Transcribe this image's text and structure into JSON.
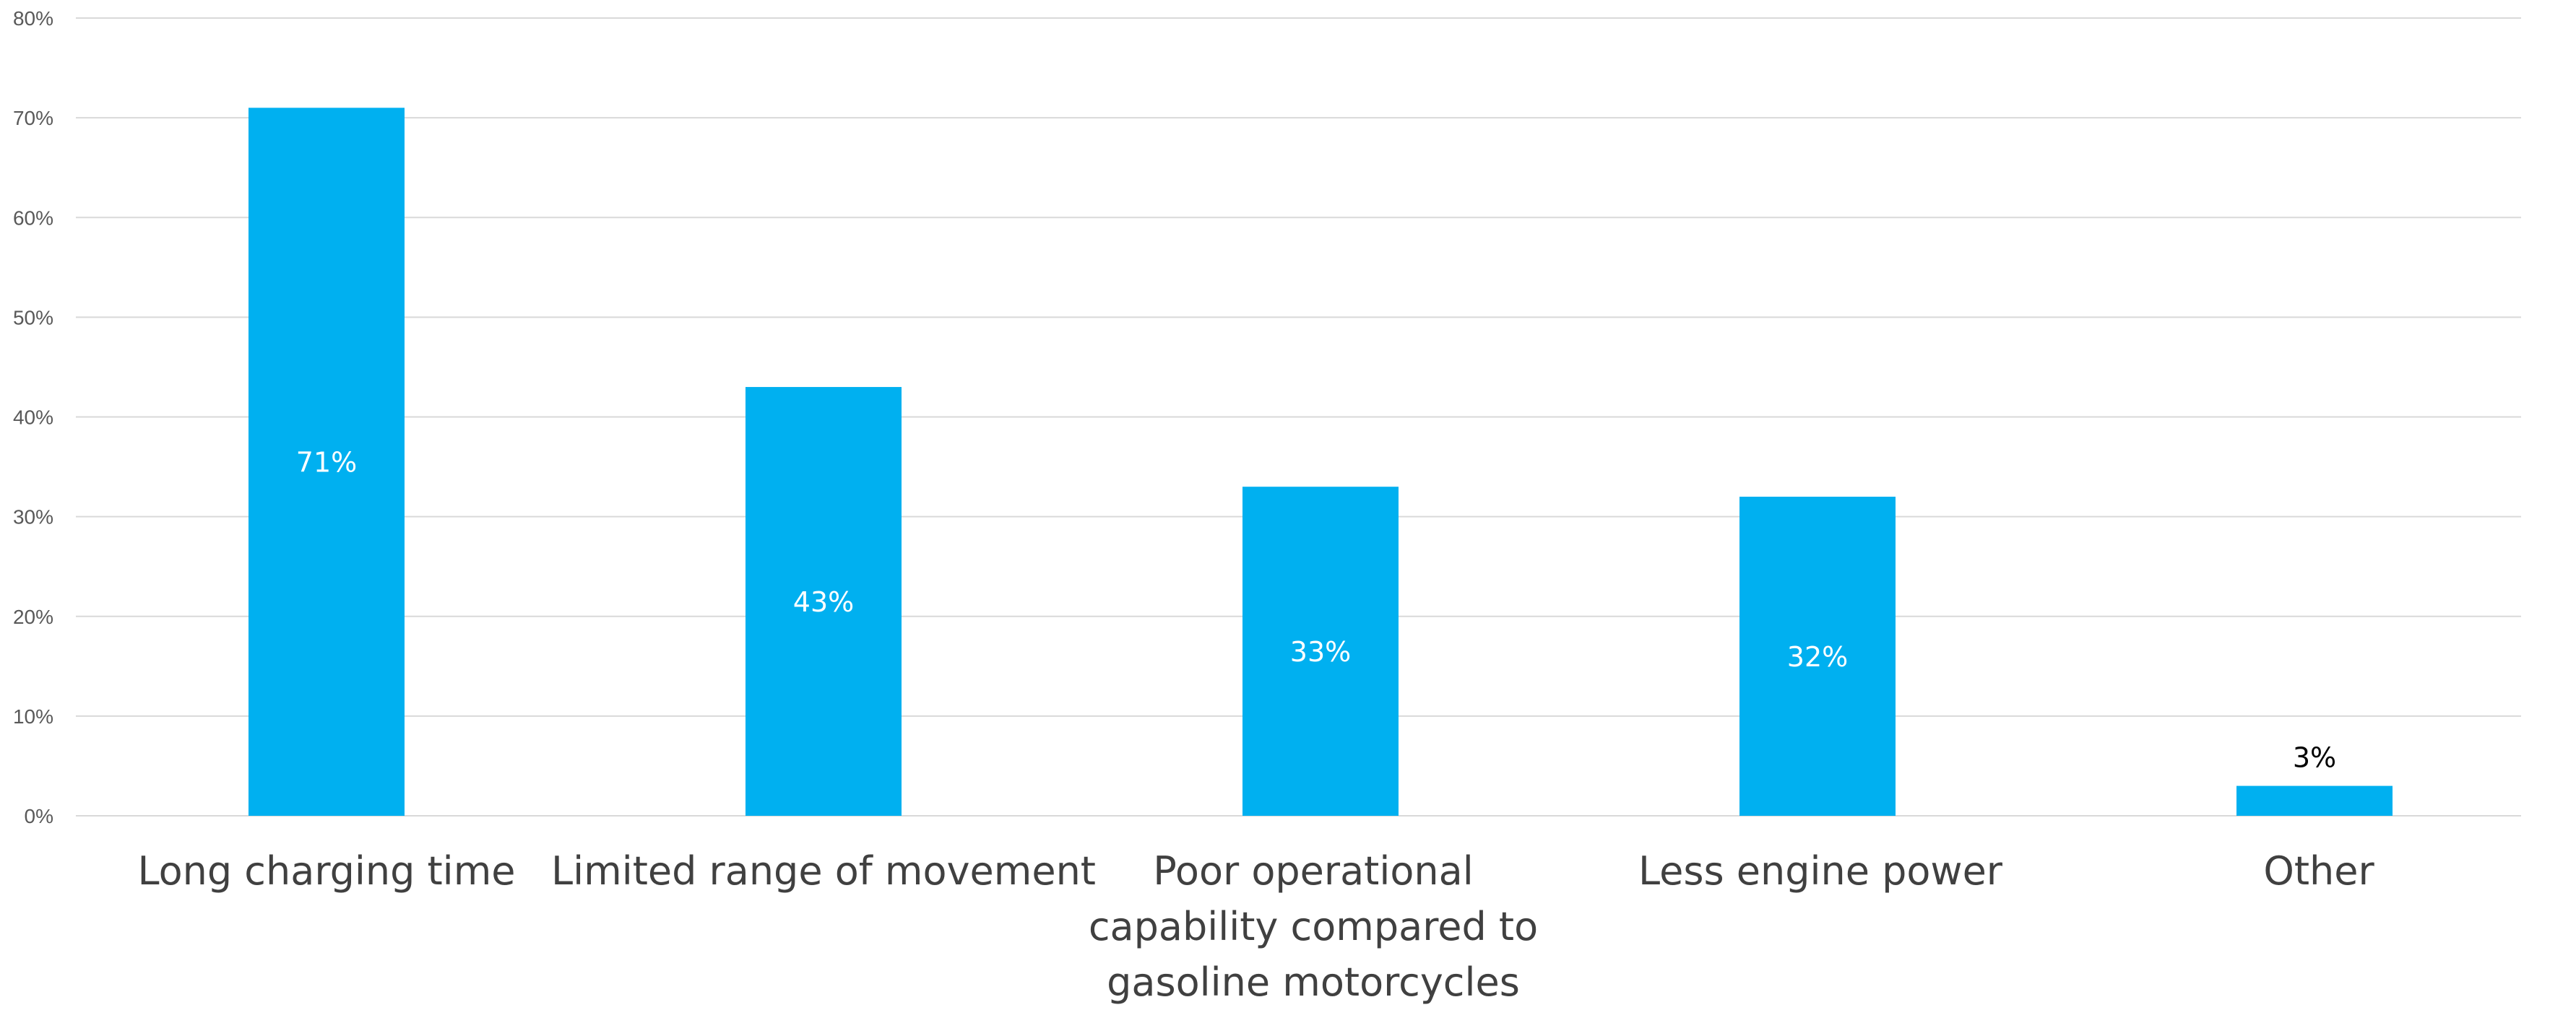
{
  "chart_data": {
    "type": "bar",
    "categories": [
      "Long charging time",
      "Limited range of movement",
      "Poor operational capability compared to gasoline motorcycles",
      "Less engine power",
      "Other"
    ],
    "values": [
      71,
      43,
      33,
      32,
      3
    ],
    "data_labels": [
      "71%",
      "43%",
      "33%",
      "32%",
      "3%"
    ],
    "ylim": [
      0,
      80
    ],
    "yticks": [
      0,
      10,
      20,
      30,
      40,
      50,
      60,
      70,
      80
    ],
    "ytick_labels": [
      "0%",
      "10%",
      "20%",
      "30%",
      "40%",
      "50%",
      "60%",
      "70%",
      "80%"
    ],
    "grid": true,
    "legend": "none",
    "colors": {
      "bar": "#00b0f0",
      "label_inside": "#ffffff",
      "label_outside": "#000000"
    }
  }
}
